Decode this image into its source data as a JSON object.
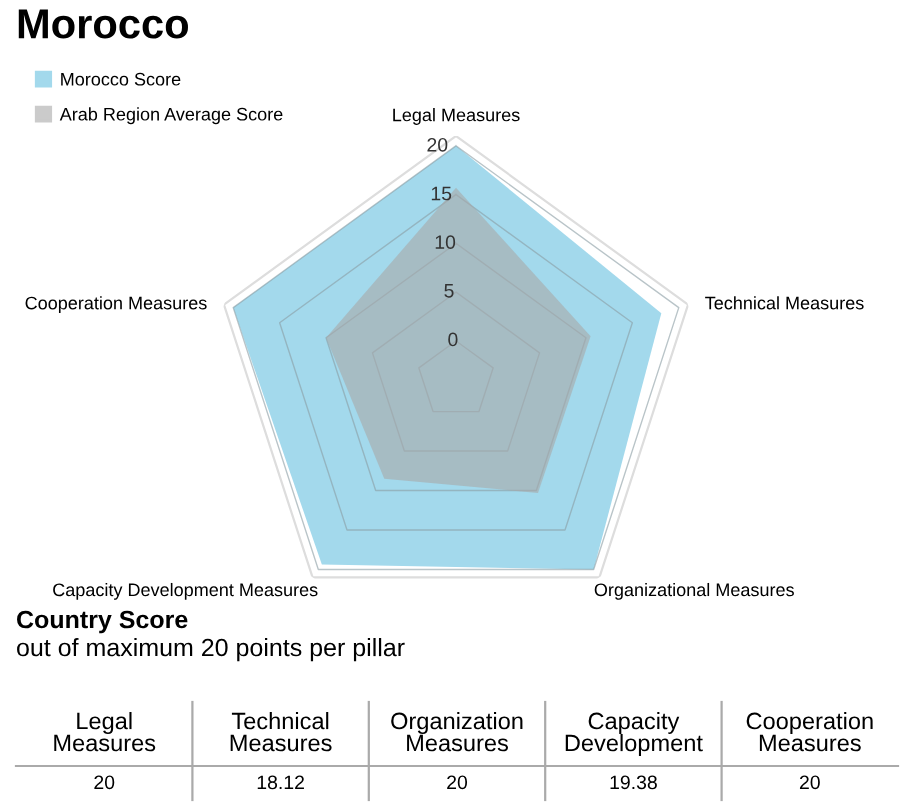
{
  "chart_data": [
    {
      "type": "radar",
      "title": "Morocco",
      "categories": [
        "Legal Measures",
        "Technical Measures",
        "Organizational Measures",
        "Capacity Development Measures",
        "Cooperation Measures"
      ],
      "series": [
        {
          "name": "Morocco Score",
          "color": "#a3d9ec",
          "values": [
            20,
            18.12,
            20,
            19.38,
            20
          ]
        },
        {
          "name": "Arab Region Average Score",
          "color": "#a9a9a9",
          "values": [
            15.7,
            10.5,
            10.3,
            8.5,
            10.0
          ]
        }
      ],
      "ylim": [
        -4,
        21
      ],
      "yticks": [
        0,
        5,
        10,
        15,
        20
      ],
      "grid": true,
      "legend": "top left"
    },
    {
      "type": "other",
      "title": "Country Score",
      "subtitle": "out of maximum 20 points per pillar",
      "categories": [
        "Legal\nMeasures",
        "Technical\nMeasures",
        "Organization\nMeasures",
        "Capacity\nDevelopment",
        "Cooperation\nMeasures"
      ],
      "values": [
        20,
        18.12,
        20,
        19.38,
        20
      ],
      "data_labels": true
    }
  ]
}
